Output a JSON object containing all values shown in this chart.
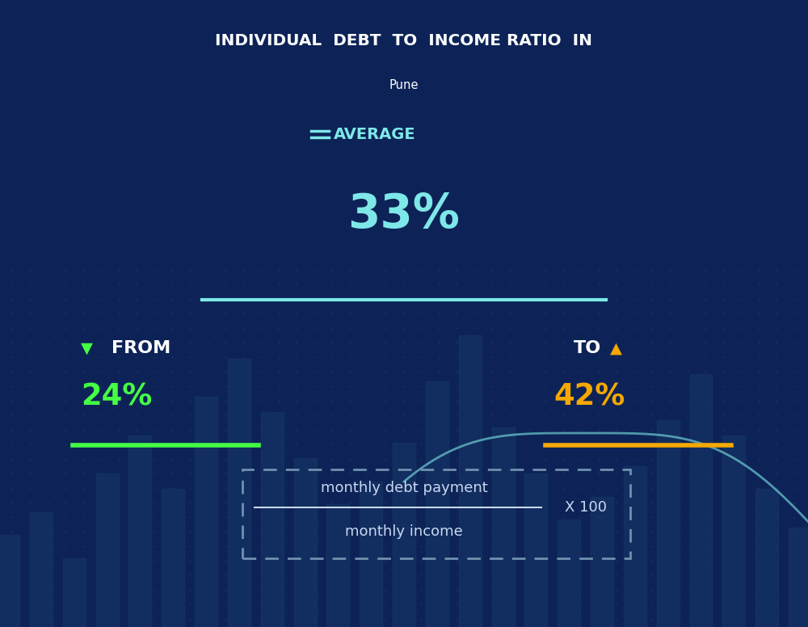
{
  "bg_color_top": "#0d2357",
  "bg_color_bottom": "#0a1a3e",
  "title_line1": "INDIVIDUAL  DEBT  TO  INCOME RATIO  IN",
  "title_line2": "Pune",
  "title_color": "#ffffff",
  "title_fontsize": 38,
  "subtitle_fontsize": 28,
  "average_label": "AVERAGE",
  "average_value": "33%",
  "average_color": "#7ee8e8",
  "average_label_color": "#7ee8e8",
  "average_fontsize": 110,
  "average_label_fontsize": 18,
  "avg_line_color": "#7ee8e8",
  "from_label": "FROM",
  "from_value": "24%",
  "from_color": "#44ff44",
  "from_label_color": "#ffffff",
  "from_fontsize": 70,
  "from_label_fontsize": 20,
  "from_underline_color": "#44ff44",
  "to_label": "TO",
  "to_value": "42%",
  "to_color": "#f5a800",
  "to_label_color": "#ffffff",
  "to_fontsize": 70,
  "to_label_fontsize": 20,
  "to_underline_color": "#f5a800",
  "formula_numerator": "monthly debt payment",
  "formula_denominator": "monthly income",
  "formula_multiplier": "X 100",
  "formula_text_color": "#c8d8f0",
  "formula_border_color": "#7090b0",
  "dot_color": "#1a3060",
  "bar_color": "#1a3a6a",
  "line_color": "#7ee8e8"
}
